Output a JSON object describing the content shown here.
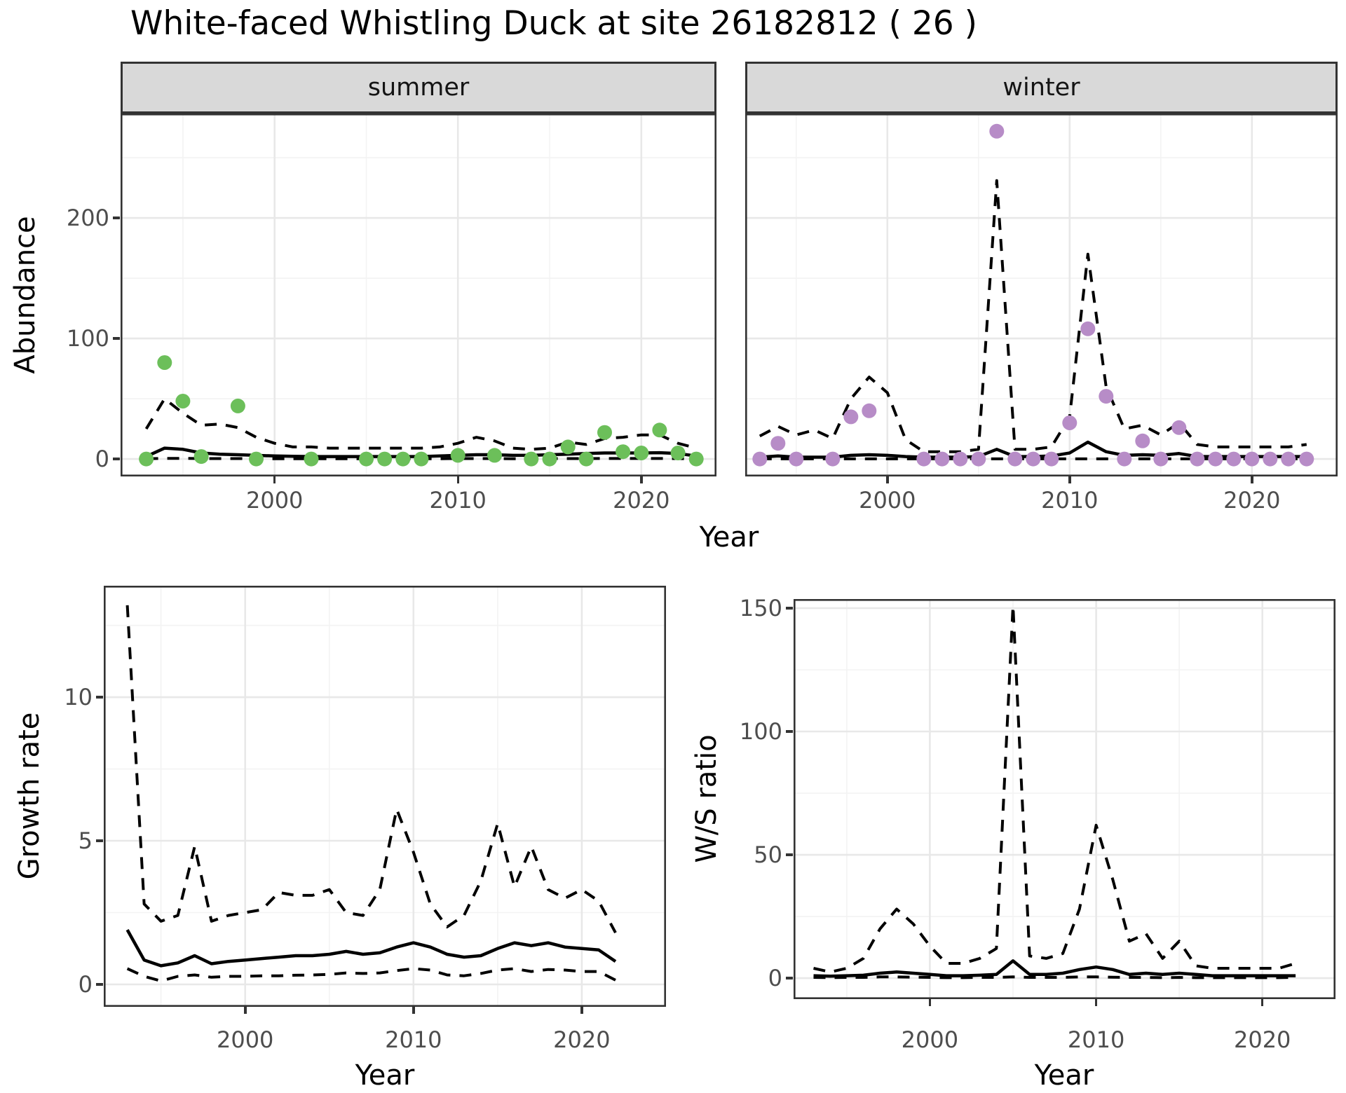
{
  "title": "White-faced Whistling Duck at site 26182812 ( 26 )",
  "colors": {
    "summer_point": "#6CBF5A",
    "winter_point": "#B78CC7",
    "fit_line": "#000000",
    "ci_line": "#000000",
    "strip_background": "#D9D9D9",
    "panel_border": "#333333",
    "grid_major": "#E8E8E8",
    "grid_minor": "#F3F3F3",
    "tick_label": "#4D4D4D",
    "text": "#000000"
  },
  "chart_data": [
    {
      "id": "abundance-summer",
      "type": "line",
      "facet_label": "summer",
      "ylabel": "Abundance",
      "xlabel": "Year",
      "xlim": [
        1991.6,
        2024.1
      ],
      "ylim": [
        -14.5,
        286.7
      ],
      "x_ticks": [
        2000,
        2010,
        2020
      ],
      "x_minor": [
        1995,
        2005,
        2015
      ],
      "y_ticks": [
        0,
        100,
        200
      ],
      "y_minor": [
        50,
        150,
        250
      ],
      "grid": true,
      "legend": "none",
      "points": {
        "name": "observed-count",
        "color_key": "summer_point",
        "x": [
          1993,
          1994,
          1995,
          1996,
          1998,
          1999,
          2002,
          2005,
          2006,
          2007,
          2008,
          2010,
          2012,
          2014,
          2015,
          2016,
          2017,
          2018,
          2019,
          2020,
          2021,
          2022,
          2023
        ],
        "y": [
          0,
          80,
          48,
          2,
          44,
          0,
          0,
          0,
          0,
          0,
          0,
          3,
          3,
          0,
          0,
          10,
          0,
          22,
          6,
          5,
          24,
          5,
          0
        ]
      },
      "series": [
        {
          "name": "model-fit",
          "style": "solid",
          "x": [
            1993,
            1994,
            1995,
            1996,
            1997,
            1998,
            1999,
            2000,
            2001,
            2002,
            2003,
            2004,
            2005,
            2006,
            2007,
            2008,
            2009,
            2010,
            2011,
            2012,
            2013,
            2014,
            2015,
            2016,
            2017,
            2018,
            2019,
            2020,
            2021,
            2022,
            2023
          ],
          "y": [
            2,
            9,
            8,
            5,
            4,
            3.5,
            3,
            2.5,
            2.2,
            2,
            2,
            2,
            2,
            2,
            2,
            2,
            2.5,
            3,
            3.5,
            3.5,
            3,
            3,
            3.5,
            4,
            4.5,
            5,
            5,
            5,
            5.2,
            4.5,
            2.5
          ]
        },
        {
          "name": "ci-upper",
          "style": "dashed",
          "x": [
            1993,
            1994,
            1995,
            1996,
            1997,
            1998,
            1999,
            2000,
            2001,
            2002,
            2003,
            2004,
            2005,
            2006,
            2007,
            2008,
            2009,
            2010,
            2011,
            2012,
            2013,
            2014,
            2015,
            2016,
            2017,
            2018,
            2019,
            2020,
            2021,
            2022,
            2023
          ],
          "y": [
            25,
            50,
            38,
            28,
            29,
            26,
            18,
            13,
            10,
            10,
            9,
            9,
            9,
            9,
            9,
            9,
            10,
            13,
            18,
            15,
            9,
            8,
            9,
            14,
            12,
            17,
            18,
            20,
            20,
            13,
            9
          ]
        },
        {
          "name": "ci-lower",
          "style": "dashed",
          "x": [
            1993,
            1994,
            1995,
            1996,
            1997,
            1998,
            1999,
            2000,
            2001,
            2002,
            2003,
            2004,
            2005,
            2006,
            2007,
            2008,
            2009,
            2010,
            2011,
            2012,
            2013,
            2014,
            2015,
            2016,
            2017,
            2018,
            2019,
            2020,
            2021,
            2022,
            2023
          ],
          "y": [
            0.2,
            0.5,
            0.5,
            0.3,
            0.3,
            0.3,
            0.2,
            0.2,
            0.2,
            0.2,
            0.2,
            0.2,
            0.2,
            0.2,
            0.2,
            0.2,
            0.2,
            0.3,
            0.3,
            0.3,
            0.2,
            0.2,
            0.3,
            0.3,
            0.3,
            0.4,
            0.4,
            0.4,
            0.4,
            0.3,
            0.2
          ]
        }
      ]
    },
    {
      "id": "abundance-winter",
      "type": "line",
      "facet_label": "winter",
      "ylabel": "",
      "xlabel": "Year",
      "xlim": [
        1992.2,
        2024.7
      ],
      "ylim": [
        -14.5,
        286.7
      ],
      "x_ticks": [
        2000,
        2010,
        2020
      ],
      "x_minor": [
        1995,
        2005,
        2015
      ],
      "y_ticks": [
        0,
        100,
        200
      ],
      "y_minor": [
        50,
        150,
        250
      ],
      "grid": true,
      "legend": "none",
      "points": {
        "name": "observed-count",
        "color_key": "winter_point",
        "x": [
          1993,
          1994,
          1995,
          1997,
          1998,
          1999,
          2002,
          2003,
          2004,
          2005,
          2006,
          2007,
          2008,
          2009,
          2010,
          2011,
          2012,
          2013,
          2014,
          2015,
          2016,
          2017,
          2018,
          2019,
          2020,
          2021,
          2022,
          2023
        ],
        "y": [
          0,
          13,
          0,
          0,
          35,
          40,
          0,
          0,
          0,
          0,
          272,
          0,
          0,
          0,
          30,
          108,
          52,
          0,
          15,
          0,
          26,
          0,
          0,
          0,
          0,
          0,
          0,
          0
        ]
      },
      "series": [
        {
          "name": "model-fit",
          "style": "solid",
          "x": [
            1993,
            1994,
            1995,
            1996,
            1997,
            1998,
            1999,
            2000,
            2001,
            2002,
            2003,
            2004,
            2005,
            2006,
            2007,
            2008,
            2009,
            2010,
            2011,
            2012,
            2013,
            2014,
            2015,
            2016,
            2017,
            2018,
            2019,
            2020,
            2021,
            2022,
            2023
          ],
          "y": [
            1.5,
            2.5,
            1.5,
            1.5,
            1.5,
            3,
            3.5,
            3,
            2,
            1.5,
            1.5,
            1.5,
            2,
            8,
            2,
            2,
            2.5,
            5,
            14,
            6,
            3,
            3.5,
            3,
            4.5,
            2,
            2,
            2,
            2,
            2,
            2,
            2
          ]
        },
        {
          "name": "ci-upper",
          "style": "dashed",
          "x": [
            1993,
            1994,
            1995,
            1996,
            1997,
            1998,
            1999,
            2000,
            2001,
            2002,
            2003,
            2004,
            2005,
            2006,
            2007,
            2008,
            2009,
            2010,
            2011,
            2012,
            2013,
            2014,
            2015,
            2016,
            2017,
            2018,
            2019,
            2020,
            2021,
            2022,
            2023
          ],
          "y": [
            19,
            27,
            20,
            24,
            17,
            50,
            68,
            55,
            16,
            6,
            6,
            6,
            8,
            231,
            8,
            8,
            10,
            35,
            170,
            60,
            25,
            28,
            20,
            30,
            12,
            10,
            10,
            10,
            10,
            10,
            12
          ]
        },
        {
          "name": "ci-lower",
          "style": "dashed",
          "x": [
            1993,
            1994,
            1995,
            1996,
            1997,
            1998,
            1999,
            2000,
            2001,
            2002,
            2003,
            2004,
            2005,
            2006,
            2007,
            2008,
            2009,
            2010,
            2011,
            2012,
            2013,
            2014,
            2015,
            2016,
            2017,
            2018,
            2019,
            2020,
            2021,
            2022,
            2023
          ],
          "y": [
            0.1,
            0.1,
            0.1,
            0.1,
            0.1,
            0.1,
            0.1,
            0.1,
            0.1,
            0.1,
            0.1,
            0.1,
            0.1,
            0.1,
            0.1,
            0.1,
            0.1,
            0.1,
            0.1,
            0.1,
            0.1,
            0.1,
            0.1,
            0.1,
            0.1,
            0.1,
            0.1,
            0.1,
            0.1,
            0.1,
            0.1
          ]
        }
      ]
    },
    {
      "id": "growth-rate",
      "type": "line",
      "facet_label": "",
      "ylabel": "Growth rate",
      "xlabel": "Year",
      "xlim": [
        1991.6,
        2025.0
      ],
      "ylim": [
        -0.78,
        13.88
      ],
      "x_ticks": [
        2000,
        2010,
        2020
      ],
      "x_minor": [
        1995,
        2005,
        2015
      ],
      "y_ticks": [
        0,
        5,
        10
      ],
      "y_minor": [
        2.5,
        7.5,
        12.5
      ],
      "grid": true,
      "legend": "none",
      "series": [
        {
          "name": "model-fit",
          "style": "solid",
          "x": [
            1993,
            1994,
            1995,
            1996,
            1997,
            1998,
            1999,
            2000,
            2001,
            2002,
            2003,
            2004,
            2005,
            2006,
            2007,
            2008,
            2009,
            2010,
            2011,
            2012,
            2013,
            2014,
            2015,
            2016,
            2017,
            2018,
            2019,
            2020,
            2021,
            2022
          ],
          "y": [
            1.9,
            0.85,
            0.65,
            0.75,
            1.0,
            0.72,
            0.8,
            0.85,
            0.9,
            0.95,
            1.0,
            1.0,
            1.05,
            1.15,
            1.05,
            1.1,
            1.3,
            1.45,
            1.3,
            1.05,
            0.95,
            1.0,
            1.25,
            1.45,
            1.35,
            1.45,
            1.3,
            1.25,
            1.2,
            0.8
          ]
        },
        {
          "name": "ci-upper",
          "style": "dashed",
          "x": [
            1993,
            1994,
            1995,
            1996,
            1997,
            1998,
            1999,
            2000,
            2001,
            2002,
            2003,
            2004,
            2005,
            2006,
            2007,
            2008,
            2009,
            2010,
            2011,
            2012,
            2013,
            2014,
            2015,
            2016,
            2017,
            2018,
            2019,
            2020,
            2021,
            2022
          ],
          "y": [
            13.2,
            2.8,
            2.2,
            2.4,
            4.8,
            2.2,
            2.4,
            2.5,
            2.6,
            3.2,
            3.1,
            3.1,
            3.3,
            2.5,
            2.4,
            3.3,
            6.1,
            4.6,
            2.8,
            2.0,
            2.4,
            3.6,
            5.6,
            3.4,
            4.8,
            3.3,
            3.0,
            3.3,
            2.9,
            1.8
          ]
        },
        {
          "name": "ci-lower",
          "style": "dashed",
          "x": [
            1993,
            1994,
            1995,
            1996,
            1997,
            1998,
            1999,
            2000,
            2001,
            2002,
            2003,
            2004,
            2005,
            2006,
            2007,
            2008,
            2009,
            2010,
            2011,
            2012,
            2013,
            2014,
            2015,
            2016,
            2017,
            2018,
            2019,
            2020,
            2021,
            2022
          ],
          "y": [
            0.55,
            0.28,
            0.12,
            0.28,
            0.33,
            0.25,
            0.28,
            0.28,
            0.3,
            0.3,
            0.32,
            0.33,
            0.35,
            0.4,
            0.38,
            0.4,
            0.48,
            0.55,
            0.5,
            0.33,
            0.3,
            0.38,
            0.5,
            0.55,
            0.45,
            0.52,
            0.5,
            0.45,
            0.45,
            0.15
          ]
        }
      ]
    },
    {
      "id": "ws-ratio",
      "type": "line",
      "facet_label": "",
      "ylabel": "W/S ratio",
      "xlabel": "Year",
      "xlim": [
        1991.8,
        2024.4
      ],
      "ylim": [
        -8.5,
        153.7
      ],
      "x_ticks": [
        2000,
        2010,
        2020
      ],
      "x_minor": [
        1995,
        2005,
        2015
      ],
      "y_ticks": [
        0,
        50,
        100,
        150
      ],
      "y_minor": [
        25,
        75,
        125
      ],
      "grid": true,
      "legend": "none",
      "series": [
        {
          "name": "model-fit",
          "style": "solid",
          "x": [
            1993,
            1994,
            1995,
            1996,
            1997,
            1998,
            1999,
            2000,
            2001,
            2002,
            2003,
            2004,
            2005,
            2006,
            2007,
            2008,
            2009,
            2010,
            2011,
            2012,
            2013,
            2014,
            2015,
            2016,
            2017,
            2018,
            2019,
            2020,
            2021,
            2022
          ],
          "y": [
            1,
            0.8,
            1,
            1.2,
            2,
            2.5,
            2,
            1.5,
            1,
            1,
            1.2,
            1.5,
            7,
            1.5,
            1.5,
            2,
            3.5,
            4.5,
            3.5,
            1.5,
            2,
            1.5,
            2,
            1.5,
            1,
            1,
            1,
            1,
            1,
            1
          ]
        },
        {
          "name": "ci-upper",
          "style": "dashed",
          "x": [
            1993,
            1994,
            1995,
            1996,
            1997,
            1998,
            1999,
            2000,
            2001,
            2002,
            2003,
            2004,
            2005,
            2006,
            2007,
            2008,
            2009,
            2010,
            2011,
            2012,
            2013,
            2014,
            2015,
            2016,
            2017,
            2018,
            2019,
            2020,
            2021,
            2022
          ],
          "y": [
            4,
            2.5,
            4,
            8,
            20,
            28,
            22,
            13,
            6,
            6,
            8,
            12,
            151,
            9,
            8,
            10,
            28,
            62,
            40,
            15,
            18,
            8,
            15,
            5,
            4,
            4,
            4,
            4,
            4,
            6
          ]
        },
        {
          "name": "ci-lower",
          "style": "dashed",
          "x": [
            1993,
            1994,
            1995,
            1996,
            1997,
            1998,
            1999,
            2000,
            2001,
            2002,
            2003,
            2004,
            2005,
            2006,
            2007,
            2008,
            2009,
            2010,
            2011,
            2012,
            2013,
            2014,
            2015,
            2016,
            2017,
            2018,
            2019,
            2020,
            2021,
            2022
          ],
          "y": [
            0.3,
            0.2,
            0.3,
            0.3,
            0.5,
            0.5,
            0.4,
            0.3,
            0.2,
            0.2,
            0.3,
            0.3,
            0.5,
            0.3,
            0.3,
            0.3,
            0.5,
            0.5,
            0.4,
            0.3,
            0.3,
            0.2,
            0.3,
            0.2,
            0.2,
            0.2,
            0.2,
            0.2,
            0.2,
            0.3
          ]
        }
      ]
    }
  ]
}
